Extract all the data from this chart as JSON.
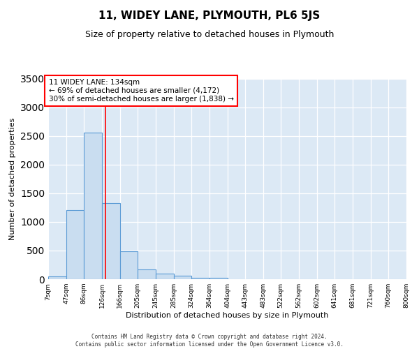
{
  "title": "11, WIDEY LANE, PLYMOUTH, PL6 5JS",
  "subtitle": "Size of property relative to detached houses in Plymouth",
  "xlabel": "Distribution of detached houses by size in Plymouth",
  "ylabel": "Number of detached properties",
  "bar_color": "#c9ddf0",
  "bar_edge_color": "#5b9bd5",
  "background_color": "#dce9f5",
  "property_line_x": 134,
  "annotation_text": "11 WIDEY LANE: 134sqm\n← 69% of detached houses are smaller (4,172)\n30% of semi-detached houses are larger (1,838) →",
  "footer_line1": "Contains HM Land Registry data © Crown copyright and database right 2024.",
  "footer_line2": "Contains public sector information licensed under the Open Government Licence v3.0.",
  "bins": [
    7,
    47,
    86,
    126,
    166,
    205,
    245,
    285,
    324,
    364,
    404,
    443,
    483,
    522,
    562,
    602,
    641,
    681,
    721,
    760,
    800
  ],
  "counts": [
    50,
    1210,
    2560,
    1330,
    490,
    175,
    100,
    55,
    30,
    20,
    5,
    0,
    0,
    0,
    0,
    0,
    0,
    0,
    0,
    0
  ],
  "ylim": [
    0,
    3500
  ],
  "xlim_left": 7,
  "xlim_right": 800,
  "title_fontsize": 11,
  "subtitle_fontsize": 9,
  "tick_fontsize": 6.5,
  "ylabel_fontsize": 8,
  "xlabel_fontsize": 8,
  "annot_fontsize": 7.5,
  "footer_fontsize": 5.5
}
